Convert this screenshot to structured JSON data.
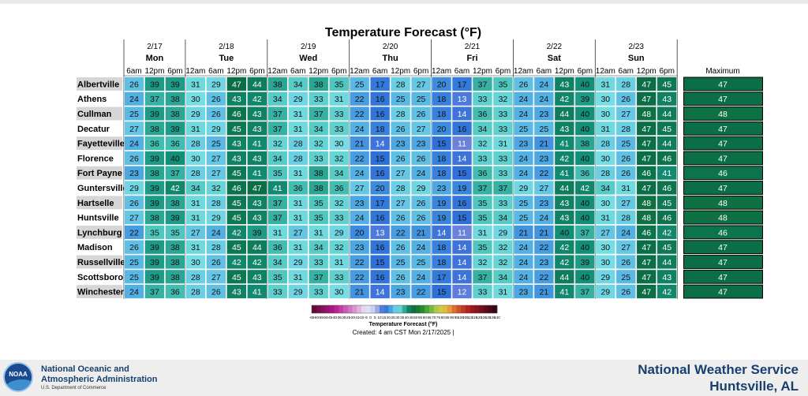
{
  "chart_data": {
    "type": "heatmap",
    "title": "Temperature Forecast (°F)",
    "days": [
      {
        "date": "2/17",
        "name": "Mon",
        "times": [
          "6am",
          "12pm",
          "6pm"
        ]
      },
      {
        "date": "2/18",
        "name": "Tue",
        "times": [
          "12am",
          "6am",
          "12pm",
          "6pm"
        ]
      },
      {
        "date": "2/19",
        "name": "Wed",
        "times": [
          "12am",
          "6am",
          "12pm",
          "6pm"
        ]
      },
      {
        "date": "2/20",
        "name": "Thu",
        "times": [
          "12am",
          "6am",
          "12pm",
          "6pm"
        ]
      },
      {
        "date": "2/21",
        "name": "Fri",
        "times": [
          "12am",
          "6am",
          "12pm",
          "6pm"
        ]
      },
      {
        "date": "2/22",
        "name": "Sat",
        "times": [
          "12am",
          "6am",
          "12pm",
          "6pm"
        ]
      },
      {
        "date": "2/23",
        "name": "Sun",
        "times": [
          "12am",
          "6am",
          "12pm",
          "6pm"
        ]
      }
    ],
    "max_header": "Maximum",
    "rows": [
      {
        "city": "Albertville",
        "values": [
          26,
          39,
          39,
          31,
          29,
          47,
          44,
          38,
          34,
          38,
          35,
          25,
          17,
          28,
          27,
          20,
          17,
          37,
          35,
          26,
          24,
          43,
          40,
          31,
          28,
          47,
          45
        ],
        "max": 47
      },
      {
        "city": "Athens",
        "values": [
          24,
          37,
          38,
          30,
          26,
          43,
          42,
          34,
          29,
          33,
          31,
          22,
          16,
          25,
          25,
          18,
          13,
          33,
          32,
          24,
          24,
          42,
          39,
          30,
          26,
          47,
          43
        ],
        "max": 47
      },
      {
        "city": "Cullman",
        "values": [
          25,
          39,
          38,
          29,
          26,
          46,
          43,
          37,
          31,
          37,
          33,
          22,
          16,
          28,
          26,
          18,
          14,
          36,
          33,
          24,
          23,
          44,
          40,
          30,
          27,
          48,
          44
        ],
        "max": 48
      },
      {
        "city": "Decatur",
        "values": [
          27,
          38,
          39,
          31,
          29,
          45,
          43,
          37,
          31,
          34,
          33,
          24,
          18,
          26,
          27,
          20,
          16,
          34,
          33,
          25,
          25,
          43,
          40,
          31,
          28,
          47,
          45
        ],
        "max": 47
      },
      {
        "city": "Fayetteville",
        "values": [
          24,
          36,
          36,
          28,
          25,
          43,
          41,
          32,
          28,
          32,
          30,
          21,
          14,
          23,
          23,
          15,
          11,
          32,
          31,
          23,
          21,
          41,
          38,
          28,
          25,
          47,
          44
        ],
        "max": 47
      },
      {
        "city": "Florence",
        "values": [
          26,
          39,
          40,
          30,
          27,
          43,
          43,
          34,
          28,
          33,
          32,
          22,
          15,
          26,
          26,
          18,
          14,
          33,
          33,
          24,
          23,
          42,
          40,
          30,
          26,
          47,
          46
        ],
        "max": 47
      },
      {
        "city": "Fort Payne",
        "values": [
          23,
          38,
          37,
          28,
          27,
          45,
          41,
          35,
          31,
          38,
          34,
          24,
          16,
          27,
          24,
          18,
          15,
          36,
          33,
          24,
          22,
          41,
          36,
          28,
          26,
          46,
          41
        ],
        "max": 46
      },
      {
        "city": "Guntersville",
        "values": [
          29,
          39,
          42,
          34,
          32,
          46,
          47,
          41,
          36,
          38,
          36,
          27,
          20,
          28,
          29,
          23,
          19,
          37,
          37,
          29,
          27,
          44,
          42,
          34,
          31,
          47,
          46
        ],
        "max": 47
      },
      {
        "city": "Hartselle",
        "values": [
          26,
          39,
          38,
          31,
          28,
          45,
          43,
          37,
          31,
          35,
          32,
          23,
          17,
          27,
          26,
          19,
          16,
          35,
          33,
          25,
          23,
          43,
          40,
          30,
          27,
          48,
          45
        ],
        "max": 48
      },
      {
        "city": "Huntsville",
        "values": [
          27,
          38,
          39,
          31,
          29,
          45,
          43,
          37,
          31,
          35,
          33,
          24,
          16,
          26,
          26,
          19,
          15,
          35,
          34,
          25,
          24,
          43,
          40,
          31,
          28,
          48,
          46
        ],
        "max": 48
      },
      {
        "city": "Lynchburg",
        "values": [
          22,
          35,
          35,
          27,
          24,
          42,
          39,
          31,
          27,
          31,
          29,
          20,
          13,
          22,
          21,
          14,
          11,
          31,
          29,
          21,
          21,
          40,
          37,
          27,
          24,
          46,
          42
        ],
        "max": 46
      },
      {
        "city": "Madison",
        "values": [
          26,
          39,
          38,
          31,
          28,
          45,
          44,
          36,
          31,
          34,
          32,
          23,
          16,
          26,
          24,
          18,
          14,
          35,
          32,
          24,
          22,
          42,
          40,
          30,
          27,
          47,
          45
        ],
        "max": 47
      },
      {
        "city": "Russellville",
        "values": [
          25,
          39,
          38,
          30,
          26,
          42,
          42,
          34,
          29,
          33,
          31,
          22,
          15,
          25,
          25,
          18,
          14,
          32,
          32,
          24,
          23,
          42,
          39,
          30,
          26,
          47,
          44
        ],
        "max": 47
      },
      {
        "city": "Scottsboro",
        "values": [
          25,
          39,
          38,
          28,
          27,
          45,
          43,
          35,
          31,
          37,
          33,
          22,
          16,
          26,
          24,
          17,
          14,
          37,
          34,
          24,
          22,
          44,
          40,
          29,
          25,
          47,
          43
        ],
        "max": 47
      },
      {
        "city": "Winchester",
        "values": [
          24,
          37,
          36,
          28,
          26,
          43,
          41,
          33,
          29,
          33,
          30,
          21,
          14,
          23,
          22,
          15,
          12,
          33,
          31,
          23,
          21,
          41,
          37,
          29,
          26,
          47,
          42
        ],
        "max": 47
      }
    ],
    "legend": {
      "ticks": [
        "-65",
        "-60",
        "-55",
        "-50",
        "-45",
        "-40",
        "-35",
        "-30",
        "-25",
        "-20",
        "-15",
        "-10",
        "-5",
        "0",
        "5",
        "10",
        "15",
        "20",
        "25",
        "30",
        "35",
        "40",
        "45",
        "50",
        "55",
        "60",
        "65",
        "70",
        "75",
        "80",
        "85",
        "90",
        "95",
        "100",
        "105",
        "110",
        "115",
        "120",
        "125",
        "130",
        "135",
        "140"
      ],
      "title": "Temperature Forecast (°F)",
      "created": "Created: 4 am CST Mon 2/17/2025  |"
    }
  },
  "footer": {
    "logo_text": "NOAA",
    "agency_line1": "National Oceanic and",
    "agency_line2": "Atmospheric Administration",
    "agency_line3": "U.S. Department of Commerce",
    "office_line1": "National Weather Service",
    "office_line2": "Huntsville, AL"
  }
}
